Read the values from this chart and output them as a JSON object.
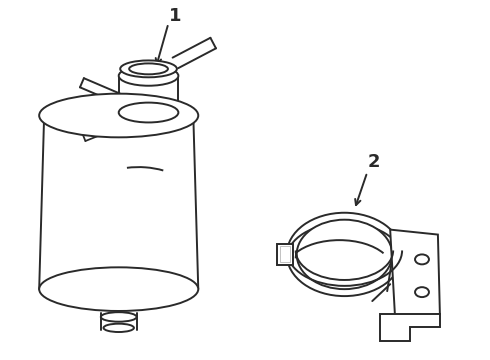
{
  "background_color": "#ffffff",
  "line_color": "#2a2a2a",
  "line_width": 1.4,
  "label_1": "1",
  "label_2": "2",
  "figsize": [
    4.9,
    3.6
  ],
  "dpi": 100
}
